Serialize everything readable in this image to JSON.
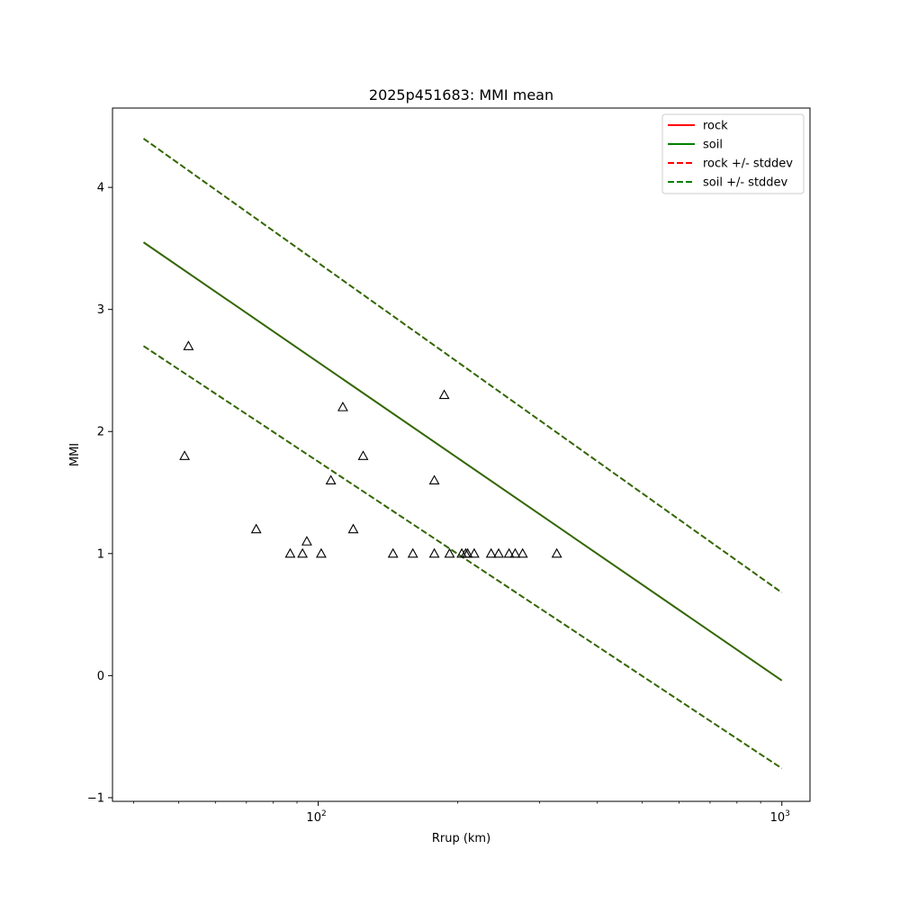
{
  "chart_data": {
    "type": "scatter",
    "title": "2025p451683: MMI mean",
    "xlabel": "Rrup (km)",
    "ylabel": "MMI",
    "xscale": "log",
    "xlim": [
      36,
      1150
    ],
    "ylim": [
      -1.03,
      4.65
    ],
    "x_ticks": [
      {
        "value": 100,
        "base": "10",
        "exp": "2"
      },
      {
        "value": 1000,
        "base": "10",
        "exp": "3"
      }
    ],
    "y_ticks": [
      {
        "value": -1,
        "label": "−1"
      },
      {
        "value": 0,
        "label": "0"
      },
      {
        "value": 1,
        "label": "1"
      },
      {
        "value": 2,
        "label": "2"
      },
      {
        "value": 3,
        "label": "3"
      },
      {
        "value": 4,
        "label": "4"
      }
    ],
    "grid": false,
    "legend_position": "top-right",
    "lines": [
      {
        "name": "rock",
        "color": "#ff0000",
        "dash": "solid",
        "x": [
          42,
          1000
        ],
        "y": [
          3.55,
          -0.04
        ],
        "drawn": false
      },
      {
        "name": "soil",
        "color": "#008000",
        "dash": "solid",
        "x": [
          42,
          1000
        ],
        "y": [
          3.55,
          -0.04
        ],
        "drawn": true
      },
      {
        "name": "rock +/- stddev",
        "color": "#ff0000",
        "dash": "dashed",
        "x": [
          42,
          1000
        ],
        "y": [
          4.4,
          0.68
        ],
        "drawn": false
      },
      {
        "name": "soil +/- stddev",
        "color": "#008000",
        "dash": "dashed",
        "x": [
          42,
          1000
        ],
        "y": [
          4.4,
          0.68
        ],
        "drawn": true
      },
      {
        "name": "soil +/- stddev",
        "color": "#008000",
        "dash": "dashed",
        "x": [
          42,
          1000
        ],
        "y": [
          2.7,
          -0.76
        ],
        "drawn": true
      }
    ],
    "overlap_color": "#336600",
    "stations": {
      "marker": "triangle",
      "x": [
        51.5,
        52.5,
        73.5,
        87,
        92.5,
        94.5,
        101.5,
        106.5,
        113,
        119,
        125,
        145,
        160,
        178,
        178,
        187,
        192,
        204,
        208,
        210,
        217,
        236,
        245,
        258,
        266,
        276,
        327
      ],
      "y": [
        1.8,
        2.7,
        1.2,
        1.0,
        1.0,
        1.1,
        1.0,
        1.6,
        2.2,
        1.2,
        1.8,
        1.0,
        1.0,
        1.0,
        1.6,
        2.3,
        1.0,
        1.0,
        1.0,
        1.0,
        1.0,
        1.0,
        1.0,
        1.0,
        1.0,
        1.0,
        1.0
      ]
    }
  }
}
